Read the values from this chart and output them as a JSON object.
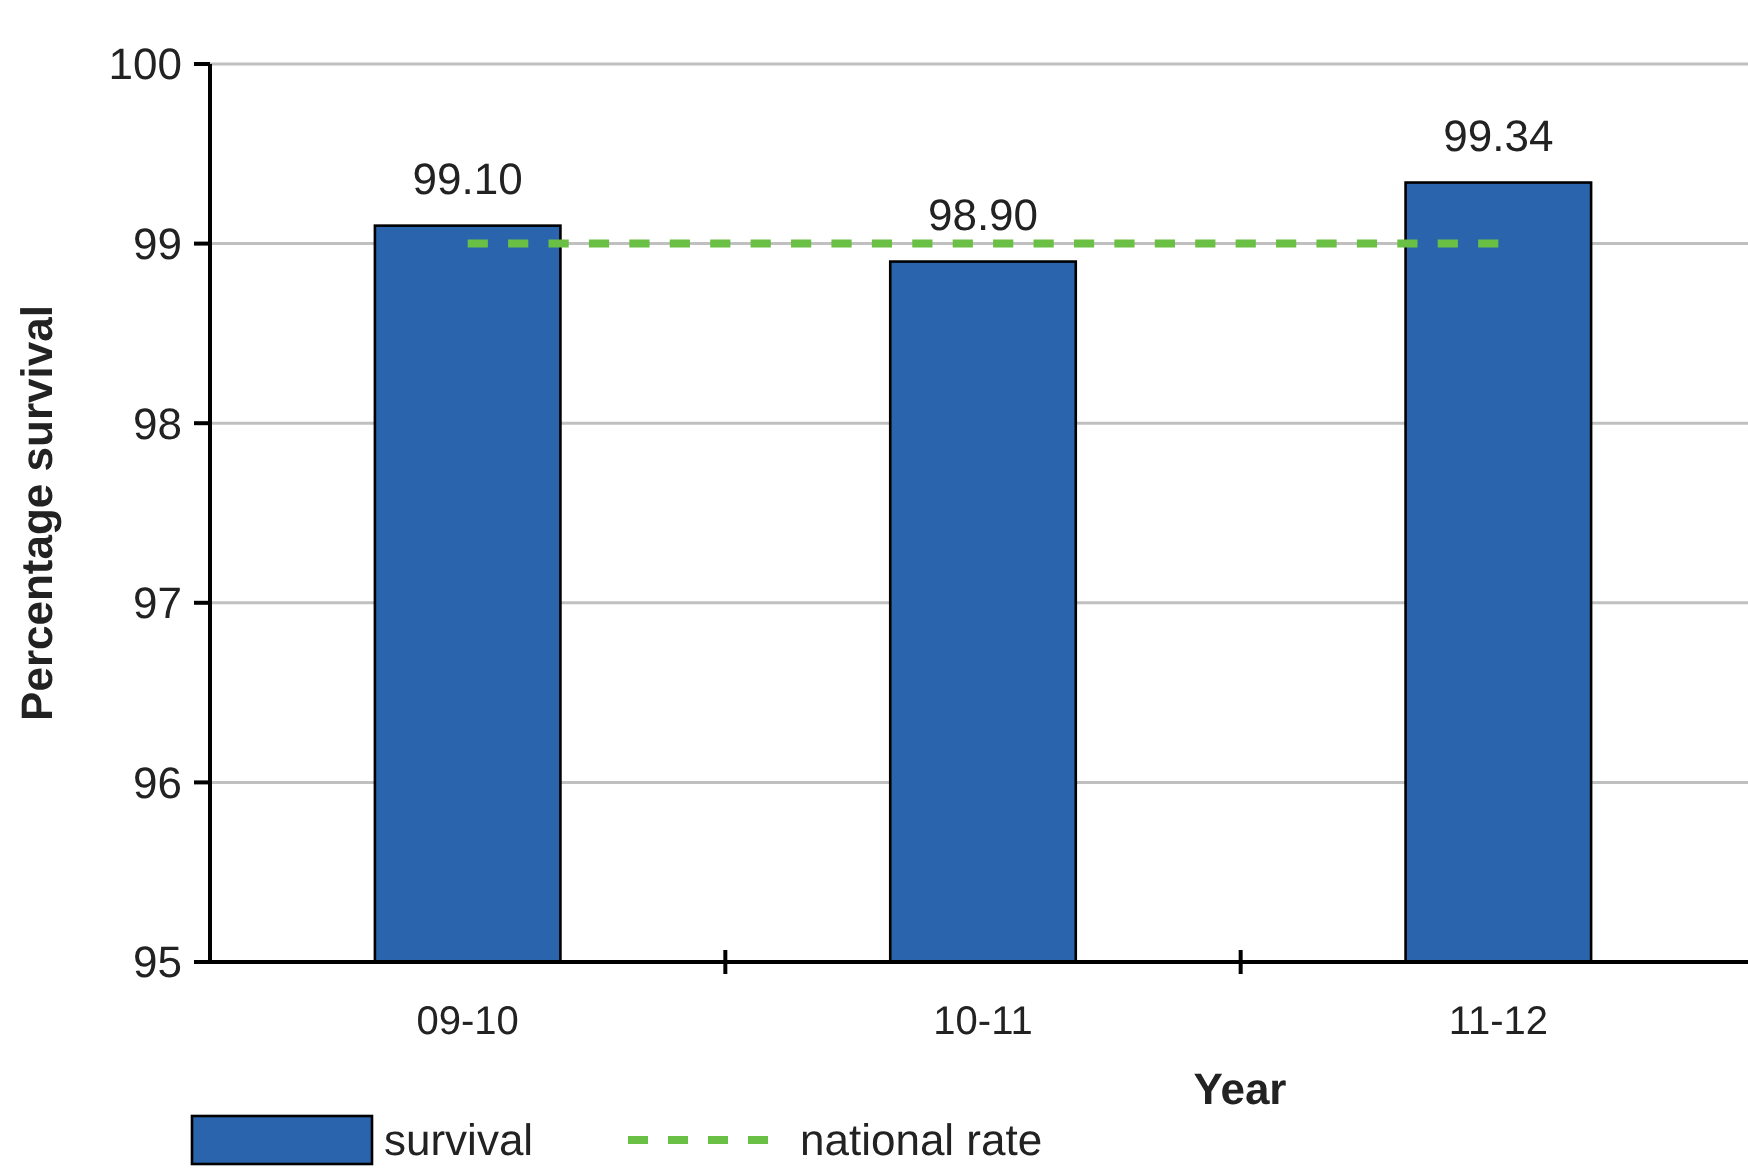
{
  "chart_data": {
    "type": "bar",
    "xlabel": "Year",
    "ylabel": "Percentage survival",
    "categories": [
      "09-10",
      "10-11",
      "11-12"
    ],
    "series": [
      {
        "name": "survival",
        "color": "#2a64ad",
        "values": [
          99.1,
          98.9,
          99.34
        ],
        "value_labels": [
          "99.10",
          "98.90",
          "99.34"
        ]
      },
      {
        "name": "national rate",
        "type": "line",
        "color": "#6abf45",
        "values": [
          99,
          99,
          99
        ],
        "line_style": "dashed",
        "marker": "none"
      }
    ],
    "ylim": [
      95,
      100
    ],
    "yticks": [
      95,
      96,
      97,
      98,
      99,
      100
    ],
    "grid": "y",
    "legend": "bottom left"
  }
}
